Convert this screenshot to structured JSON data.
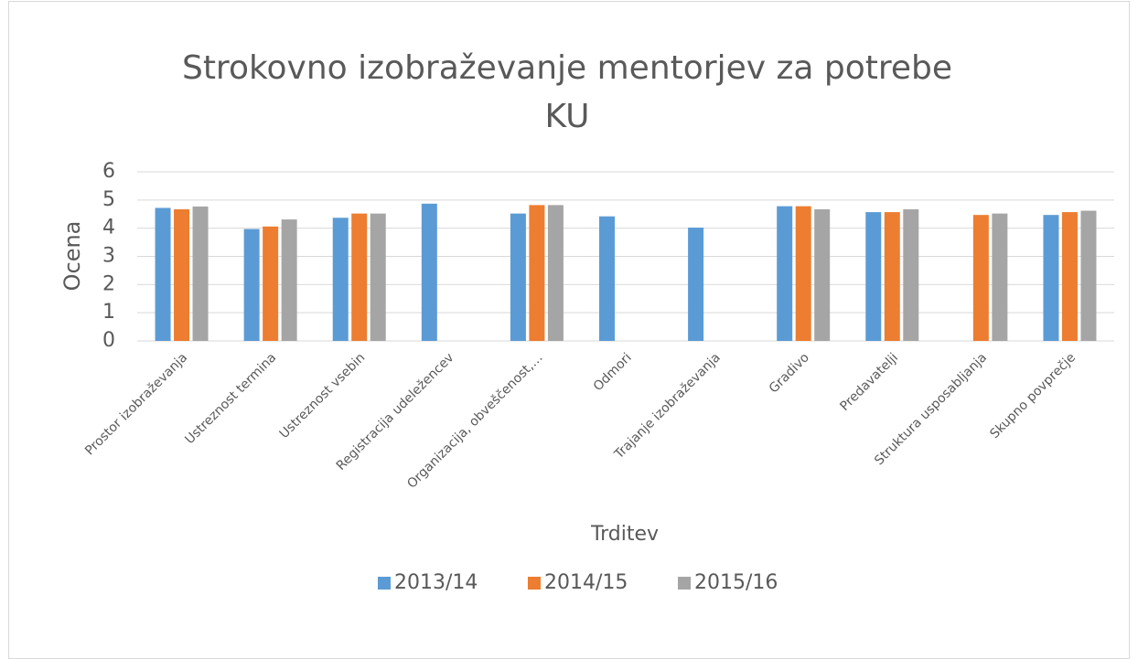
{
  "chart_data": {
    "type": "bar",
    "title": "Strokovno izobraževanje mentorjev za potrebe KU",
    "x_label": "Trditev",
    "y_label": "Ocena",
    "categories": [
      "Prostor izobraževanja",
      "Ustreznost termina",
      "Ustreznost vsebin",
      "Registracija udeležencev",
      "Organizacija, obveščenost,…",
      "Odmori",
      "Trajanje izobraževanja",
      "Gradivo",
      "Predavatelji",
      "Struktura usposabljanja",
      "Skupno povprečje"
    ],
    "series": [
      {
        "name": "2013/14",
        "color": "#5b9bd5",
        "values": [
          4.72,
          3.97,
          4.37,
          4.87,
          4.52,
          4.42,
          4.02,
          4.78,
          4.57,
          null,
          4.47
        ]
      },
      {
        "name": "2014/15",
        "color": "#ed7d31",
        "values": [
          4.67,
          4.06,
          4.52,
          null,
          4.82,
          null,
          null,
          4.78,
          4.57,
          4.47,
          4.57
        ]
      },
      {
        "name": "2015/16",
        "color": "#a5a5a5",
        "values": [
          4.77,
          4.31,
          4.52,
          null,
          4.82,
          null,
          null,
          4.67,
          4.67,
          4.52,
          4.62
        ]
      }
    ],
    "ylim": [
      0,
      6
    ],
    "yticks": [
      0,
      1,
      2,
      3,
      4,
      5,
      6
    ],
    "grid": true,
    "legend": "bottom"
  }
}
